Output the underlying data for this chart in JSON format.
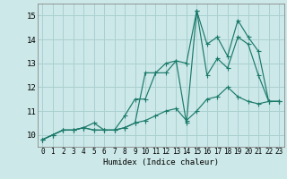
{
  "title": "",
  "xlabel": "Humidex (Indice chaleur)",
  "bg_color": "#cce8e8",
  "grid_color": "#aad0d0",
  "line_color": "#1a7a6a",
  "xlim": [
    -0.5,
    23.5
  ],
  "ylim": [
    9.5,
    15.5
  ],
  "yticks": [
    10,
    11,
    12,
    13,
    14,
    15
  ],
  "xticks": [
    0,
    1,
    2,
    3,
    4,
    5,
    6,
    7,
    8,
    9,
    10,
    11,
    12,
    13,
    14,
    15,
    16,
    17,
    18,
    19,
    20,
    21,
    22,
    23
  ],
  "line1_x": [
    0,
    1,
    2,
    3,
    4,
    5,
    6,
    7,
    8,
    9,
    10,
    11,
    12,
    13,
    14,
    15,
    16,
    17,
    18,
    19,
    20,
    21,
    22,
    23
  ],
  "line1_y": [
    9.8,
    10.0,
    10.2,
    10.2,
    10.3,
    10.5,
    10.2,
    10.2,
    10.8,
    11.5,
    11.5,
    12.6,
    12.6,
    13.1,
    10.5,
    15.2,
    12.5,
    13.2,
    12.8,
    14.1,
    13.8,
    12.5,
    11.4,
    11.4
  ],
  "line2_x": [
    0,
    1,
    2,
    3,
    4,
    5,
    6,
    7,
    8,
    9,
    10,
    11,
    12,
    13,
    14,
    15,
    16,
    17,
    18,
    19,
    20,
    21,
    22,
    23
  ],
  "line2_y": [
    9.8,
    10.0,
    10.2,
    10.2,
    10.3,
    10.2,
    10.2,
    10.2,
    10.3,
    10.5,
    12.6,
    12.6,
    13.0,
    13.1,
    13.0,
    15.2,
    13.8,
    14.1,
    13.3,
    14.8,
    14.1,
    13.5,
    11.4,
    11.4
  ],
  "line3_x": [
    0,
    1,
    2,
    3,
    4,
    5,
    6,
    7,
    8,
    9,
    10,
    11,
    12,
    13,
    14,
    15,
    16,
    17,
    18,
    19,
    20,
    21,
    22,
    23
  ],
  "line3_y": [
    9.8,
    10.0,
    10.2,
    10.2,
    10.3,
    10.2,
    10.2,
    10.2,
    10.3,
    10.5,
    10.6,
    10.8,
    11.0,
    11.1,
    10.6,
    11.0,
    11.5,
    11.6,
    12.0,
    11.6,
    11.4,
    11.3,
    11.4,
    11.4
  ]
}
